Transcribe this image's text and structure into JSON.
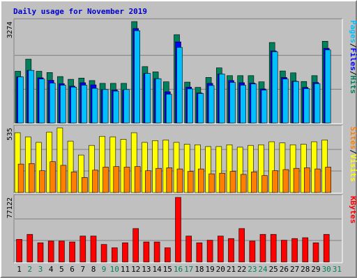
{
  "title": "Daily usage for November 2019",
  "colors": {
    "background": "#c0c0c0",
    "panel": "#c0c0c0",
    "hits": "#00805c",
    "files": "#0000ff",
    "pages": "#00c0ff",
    "visits": "#ffff00",
    "sites": "#ff8000",
    "kbytes": "#ff0000",
    "grid": "#808080",
    "title": "#0000cc",
    "weekday_label": "#000000",
    "weekend_label": "#00805c"
  },
  "legend": {
    "top": [
      {
        "text": "Hits",
        "color": "#00805c"
      },
      {
        "text": "/",
        "color": "#000000"
      },
      {
        "text": "Files",
        "color": "#0000ff"
      },
      {
        "text": "/",
        "color": "#000000"
      },
      {
        "text": "Pages",
        "color": "#00c0ff"
      }
    ],
    "middle": [
      {
        "text": "Visits",
        "color": "#ffff00"
      },
      {
        "text": "/",
        "color": "#000000"
      },
      {
        "text": "Sites",
        "color": "#ff8000"
      }
    ],
    "bottom": [
      {
        "text": "KBytes",
        "color": "#ff0000"
      }
    ]
  },
  "chart_data": [
    {
      "type": "bar",
      "panel": "hits-files-pages",
      "ymax_label": "3274",
      "ylim": [
        0,
        3274
      ],
      "categories": [
        "1",
        "2",
        "3",
        "4",
        "5",
        "6",
        "7",
        "8",
        "9",
        "10",
        "11",
        "12",
        "13",
        "14",
        "15",
        "16",
        "17",
        "18",
        "19",
        "20",
        "21",
        "22",
        "23",
        "24",
        "25",
        "26",
        "27",
        "28",
        "29",
        "30",
        "31"
      ],
      "series": [
        {
          "name": "Hits",
          "values": [
            1670,
            2060,
            1670,
            1630,
            1500,
            1410,
            1450,
            1370,
            1280,
            1280,
            1280,
            3274,
            1820,
            1650,
            1330,
            2850,
            1320,
            1150,
            1470,
            1780,
            1530,
            1530,
            1530,
            1330,
            2600,
            1680,
            1620,
            1340,
            1530,
            2640,
            null
          ]
        },
        {
          "name": "Files",
          "values": [
            1490,
            1700,
            1460,
            1380,
            1270,
            1190,
            1300,
            1230,
            1080,
            1070,
            1060,
            3050,
            1600,
            1430,
            1010,
            2620,
            1160,
            970,
            1280,
            1580,
            1370,
            1300,
            1290,
            1100,
            2330,
            1470,
            1350,
            1150,
            1310,
            2410,
            null
          ]
        },
        {
          "name": "Pages",
          "values": [
            1490,
            1700,
            1420,
            1290,
            1220,
            1160,
            1220,
            1120,
            1080,
            1030,
            1080,
            2980,
            1600,
            1430,
            930,
            2440,
            1100,
            950,
            1210,
            1580,
            1310,
            1220,
            1260,
            1060,
            2300,
            1420,
            1340,
            1110,
            1270,
            2360,
            null
          ]
        }
      ]
    },
    {
      "type": "bar",
      "panel": "visits-sites",
      "ymax_label": "535",
      "ylim": [
        0,
        535
      ],
      "categories": [
        "1",
        "2",
        "3",
        "4",
        "5",
        "6",
        "7",
        "8",
        "9",
        "10",
        "11",
        "12",
        "13",
        "14",
        "15",
        "16",
        "17",
        "18",
        "19",
        "20",
        "21",
        "22",
        "23",
        "24",
        "25",
        "26",
        "27",
        "28",
        "29",
        "30",
        "31"
      ],
      "series": [
        {
          "name": "Visits",
          "values": [
            495,
            460,
            415,
            500,
            535,
            425,
            310,
            390,
            465,
            460,
            440,
            495,
            415,
            430,
            435,
            415,
            400,
            395,
            380,
            380,
            395,
            375,
            390,
            395,
            420,
            410,
            395,
            400,
            420,
            435,
            null
          ]
        },
        {
          "name": "Sites",
          "values": [
            235,
            240,
            180,
            255,
            225,
            170,
            125,
            185,
            210,
            215,
            210,
            215,
            180,
            200,
            205,
            195,
            175,
            195,
            155,
            160,
            175,
            150,
            170,
            140,
            180,
            190,
            200,
            205,
            195,
            210,
            null
          ]
        }
      ]
    },
    {
      "type": "bar",
      "panel": "kbytes",
      "ymax_label": "77122",
      "ylim": [
        0,
        77122
      ],
      "categories": [
        "1",
        "2",
        "3",
        "4",
        "5",
        "6",
        "7",
        "8",
        "9",
        "10",
        "11",
        "12",
        "13",
        "14",
        "15",
        "16",
        "17",
        "18",
        "19",
        "20",
        "21",
        "22",
        "23",
        "24",
        "25",
        "26",
        "27",
        "28",
        "29",
        "30",
        "31"
      ],
      "series": [
        {
          "name": "KBytes",
          "values": [
            27000,
            33000,
            23000,
            25000,
            25000,
            24000,
            31000,
            31000,
            21000,
            17000,
            23000,
            40000,
            24000,
            24000,
            17000,
            77122,
            31000,
            23000,
            26000,
            31000,
            28000,
            40000,
            25000,
            33000,
            33000,
            26000,
            28000,
            29000,
            23000,
            33000,
            null
          ]
        }
      ]
    }
  ],
  "day_labels": [
    {
      "text": "1",
      "weekend": false
    },
    {
      "text": "2",
      "weekend": true
    },
    {
      "text": "3",
      "weekend": true
    },
    {
      "text": "4",
      "weekend": false
    },
    {
      "text": "5",
      "weekend": false
    },
    {
      "text": "6",
      "weekend": false
    },
    {
      "text": "7",
      "weekend": false
    },
    {
      "text": "8",
      "weekend": false
    },
    {
      "text": "9",
      "weekend": true
    },
    {
      "text": "10",
      "weekend": true
    },
    {
      "text": "11",
      "weekend": false
    },
    {
      "text": "12",
      "weekend": false
    },
    {
      "text": "13",
      "weekend": false
    },
    {
      "text": "14",
      "weekend": false
    },
    {
      "text": "15",
      "weekend": false
    },
    {
      "text": "16",
      "weekend": true
    },
    {
      "text": "17",
      "weekend": true
    },
    {
      "text": "18",
      "weekend": false
    },
    {
      "text": "19",
      "weekend": false
    },
    {
      "text": "20",
      "weekend": false
    },
    {
      "text": "21",
      "weekend": false
    },
    {
      "text": "22",
      "weekend": false
    },
    {
      "text": "23",
      "weekend": true
    },
    {
      "text": "24",
      "weekend": true
    },
    {
      "text": "25",
      "weekend": false
    },
    {
      "text": "26",
      "weekend": false
    },
    {
      "text": "27",
      "weekend": false
    },
    {
      "text": "28",
      "weekend": false
    },
    {
      "text": "29",
      "weekend": false
    },
    {
      "text": "30",
      "weekend": true
    },
    {
      "text": "31",
      "weekend": true
    }
  ]
}
